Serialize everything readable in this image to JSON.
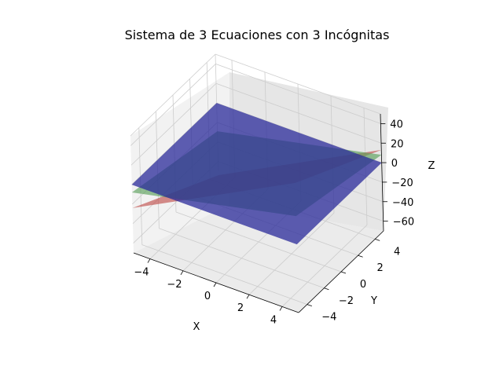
{
  "chart_data": {
    "type": "surface3d",
    "title": "Sistema de 3 Ecuaciones con 3 Incógnitas",
    "xlabel": "X",
    "ylabel": "Y",
    "zlabel": "Z",
    "x_ticks": [
      "−4",
      "−2",
      "0",
      "2",
      "4"
    ],
    "y_ticks": [
      "−4",
      "−2",
      "0",
      "2",
      "4"
    ],
    "z_ticks": [
      "−60",
      "−40",
      "−20",
      "0",
      "20",
      "40"
    ],
    "xlim": [
      -5,
      5
    ],
    "ylim": [
      -5,
      5
    ],
    "zlim": [
      -70,
      50
    ],
    "grid": true,
    "planes": [
      {
        "corner_z": {
          "xmin_ymin": -24,
          "xmax_ymin": 63,
          "xmax_ymax": 13,
          "xmin_ymax": -74
        },
        "color": "#c0504d",
        "opacity": 0.65
      },
      {
        "corner_z": {
          "xmin_ymin": -8,
          "xmax_ymin": 29,
          "xmax_ymax": 8,
          "xmin_ymax": -29
        },
        "color": "#5aa05a",
        "opacity": 0.65
      },
      {
        "corner_z": {
          "xmin_ymin": 0,
          "xmax_ymin": 0,
          "xmax_ymax": 0,
          "xmin_ymax": 0
        },
        "color": "#2a2a9a",
        "opacity": 0.75
      }
    ]
  }
}
